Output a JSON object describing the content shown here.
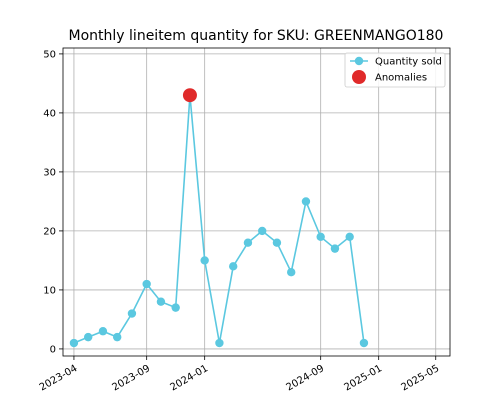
{
  "chart_data": {
    "type": "line",
    "title": "Monthly lineitem quantity for SKU: GREENMANGO180",
    "xlabel": "",
    "ylabel": "",
    "ylim": [
      -1.2,
      51
    ],
    "xlim": [
      "2023-03-09",
      "2025-05-31"
    ],
    "yticks": [
      0,
      10,
      20,
      30,
      40,
      50
    ],
    "xticks": [
      "2023-04",
      "2023-09",
      "2024-01",
      "2024-09",
      "2025-01",
      "2025-05"
    ],
    "grid": true,
    "legend_position": "top-right",
    "series": [
      {
        "name": "Quantity sold",
        "color": "#5bc8e0",
        "points": [
          {
            "x": "2023-04",
            "y": 1
          },
          {
            "x": "2023-05",
            "y": 2
          },
          {
            "x": "2023-06",
            "y": 3
          },
          {
            "x": "2023-07",
            "y": 2
          },
          {
            "x": "2023-08",
            "y": 6
          },
          {
            "x": "2023-09",
            "y": 11
          },
          {
            "x": "2023-10",
            "y": 8
          },
          {
            "x": "2023-11",
            "y": 7
          },
          {
            "x": "2023-12",
            "y": 43
          },
          {
            "x": "2024-01",
            "y": 15
          },
          {
            "x": "2024-02",
            "y": 1
          },
          {
            "x": "2024-03",
            "y": 14
          },
          {
            "x": "2024-04",
            "y": 18
          },
          {
            "x": "2024-05",
            "y": 20
          },
          {
            "x": "2024-06",
            "y": 18
          },
          {
            "x": "2024-07",
            "y": 13
          },
          {
            "x": "2024-08",
            "y": 25
          },
          {
            "x": "2024-09",
            "y": 19
          },
          {
            "x": "2024-10",
            "y": 17
          },
          {
            "x": "2024-11",
            "y": 19
          },
          {
            "x": "2024-12",
            "y": 1
          }
        ]
      },
      {
        "name": "Anomalies",
        "color": "#e02a2a",
        "points": [
          {
            "x": "2023-12",
            "y": 43
          }
        ]
      }
    ]
  }
}
